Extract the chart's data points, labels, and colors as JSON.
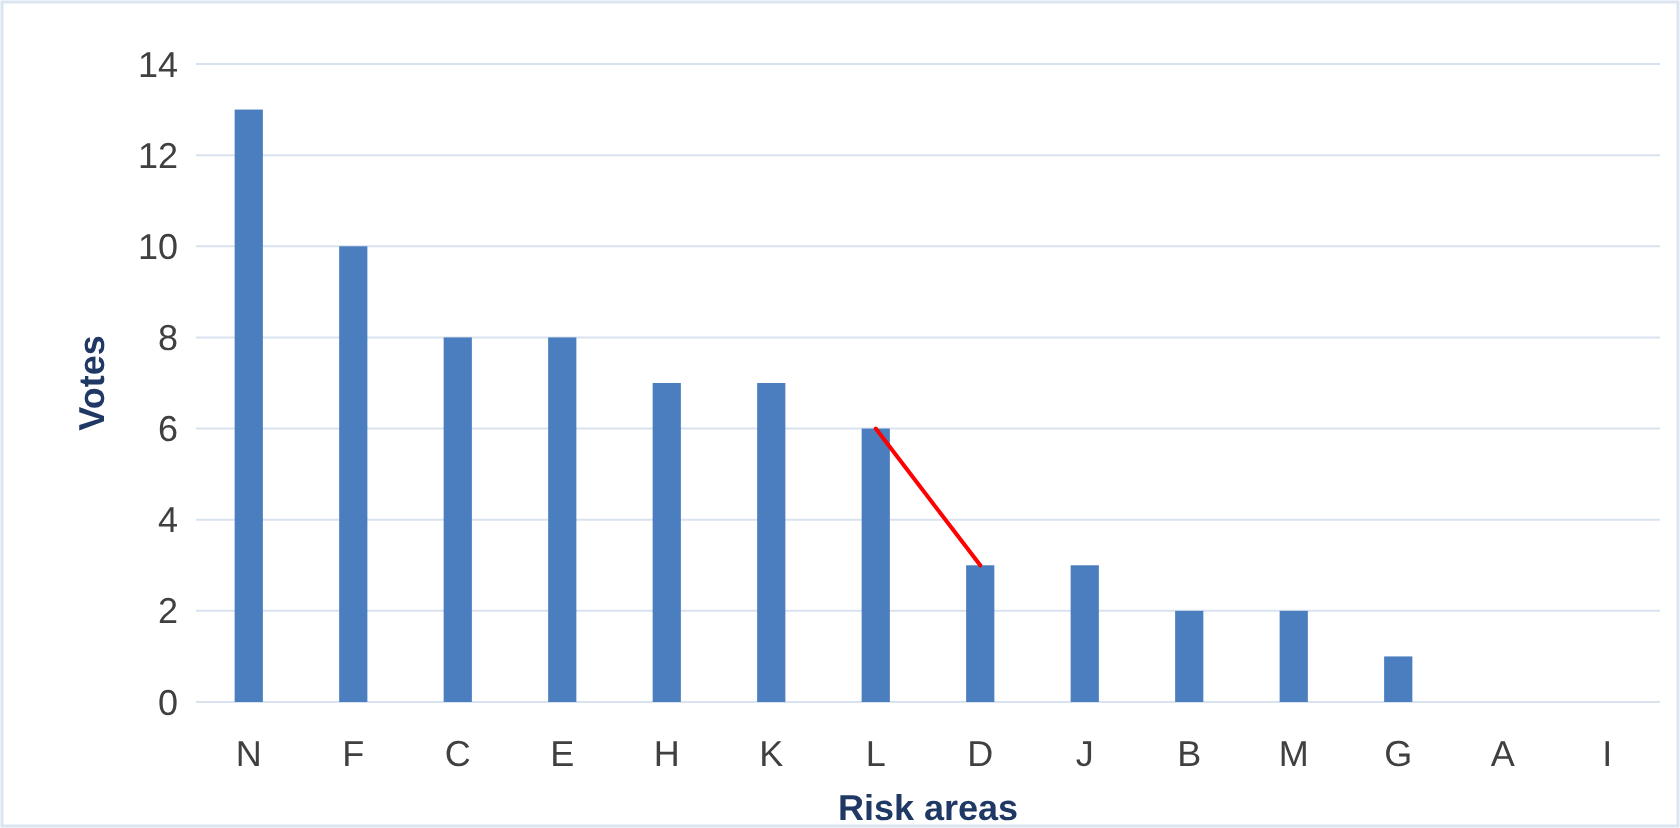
{
  "chart_data": {
    "type": "bar",
    "xlabel": "Risk areas",
    "ylabel": "Votes",
    "categories": [
      "N",
      "F",
      "C",
      "E",
      "H",
      "K",
      "L",
      "D",
      "J",
      "B",
      "M",
      "G",
      "A",
      "I"
    ],
    "series": [
      {
        "color": "#4a7ebf",
        "values": [
          13,
          10,
          8,
          8,
          7,
          7,
          6,
          3,
          3,
          2,
          2,
          1,
          0,
          0
        ]
      },
      {
        "type": "line",
        "color": "#ff0000",
        "x": [
          "L",
          "D"
        ],
        "values": [
          6,
          3
        ]
      }
    ],
    "ylim": [
      0,
      14
    ],
    "yticks": [
      0,
      2,
      4,
      6,
      8,
      10,
      12,
      14
    ],
    "grid": "y"
  }
}
